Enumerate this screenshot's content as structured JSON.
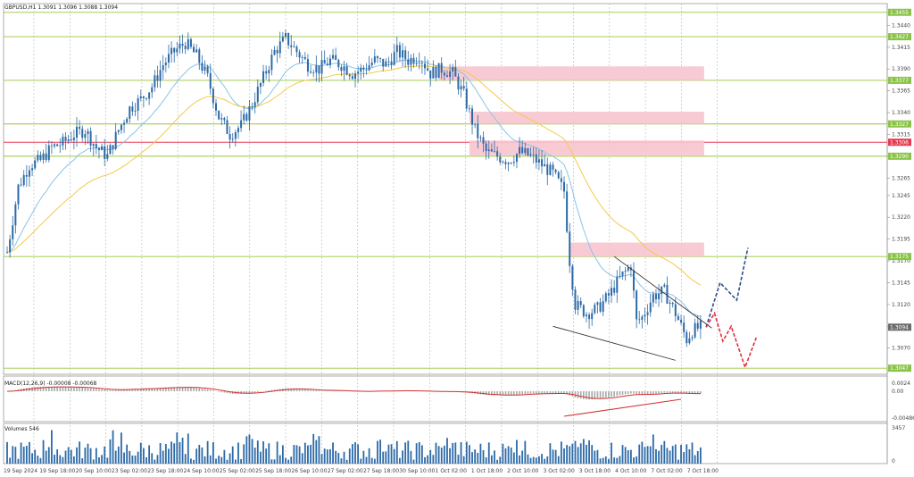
{
  "chart_data": {
    "type": "candlestick",
    "header": {
      "main": "GBPUSD,H1  1.3091 1.3096 1.3088 1.3094",
      "macd": "MACD(12,26,9) -0.00008 -0.00068",
      "volumes": "Volumes 546"
    },
    "price_axis": {
      "ticks": [
        "1.3440",
        "1.3415",
        "1.3390",
        "1.3365",
        "1.3340",
        "1.3315",
        "1.3290",
        "1.3265",
        "1.3245",
        "1.3220",
        "1.3195",
        "1.3170",
        "1.3145",
        "1.3120",
        "1.3095",
        "1.3070",
        "1.3045"
      ],
      "ylim": [
        1.304,
        1.3465
      ]
    },
    "price_labels": [
      {
        "text": "1.3455",
        "value": 1.3455,
        "color": "#8bc34a"
      },
      {
        "text": "1.3427",
        "value": 1.3427,
        "color": "#8bc34a"
      },
      {
        "text": "1.3377",
        "value": 1.3377,
        "color": "#8bc34a"
      },
      {
        "text": "1.3327",
        "value": 1.3327,
        "color": "#8bc34a"
      },
      {
        "text": "1.3306",
        "value": 1.3306,
        "color": "#e53950"
      },
      {
        "text": "1.3290",
        "value": 1.329,
        "color": "#8bc34a"
      },
      {
        "text": "1.3175",
        "value": 1.3175,
        "color": "#8bc34a"
      },
      {
        "text": "1.3094",
        "value": 1.3094,
        "color": "#6b6b6b"
      },
      {
        "text": "1.3047",
        "value": 1.3047,
        "color": "#8bc34a"
      }
    ],
    "horizontal_levels": [
      {
        "value": 1.3455,
        "color": "#9bc53d"
      },
      {
        "value": 1.3427,
        "color": "#9bc53d"
      },
      {
        "value": 1.3377,
        "color": "#9bc53d"
      },
      {
        "value": 1.3327,
        "color": "#9bc53d"
      },
      {
        "value": 1.3306,
        "color": "#e53950"
      },
      {
        "value": 1.329,
        "color": "#9bc53d"
      },
      {
        "value": 1.3175,
        "color": "#9bc53d"
      },
      {
        "value": 1.3047,
        "color": "#9bc53d"
      }
    ],
    "zones": [
      {
        "x_start": 155,
        "x_end": 249,
        "top": 1.3393,
        "bottom": 1.3377
      },
      {
        "x_start": 166,
        "x_end": 249,
        "top": 1.3341,
        "bottom": 1.3327
      },
      {
        "x_start": 166,
        "x_end": 249,
        "top": 1.3308,
        "bottom": 1.3291
      },
      {
        "x_start": 202,
        "x_end": 249,
        "top": 1.3191,
        "bottom": 1.3175
      }
    ],
    "time_axis": [
      "19 Sep 2024",
      "19 Sep 18:00",
      "20 Sep 10:00",
      "23 Sep 02:00",
      "23 Sep 18:00",
      "24 Sep 10:00",
      "25 Sep 02:00",
      "25 Sep 18:00",
      "26 Sep 10:00",
      "27 Sep 02:00",
      "27 Sep 18:00",
      "30 Sep 10:00",
      "1 Oct 02:00",
      "1 Oct 18:00",
      "2 Oct 10:00",
      "3 Oct 02:00",
      "3 Oct 18:00",
      "4 Oct 10:00",
      "7 Oct 02:00",
      "7 Oct 18:00"
    ],
    "close_path": [
      [
        0,
        1.318
      ],
      [
        4,
        1.3255
      ],
      [
        8,
        1.328
      ],
      [
        12,
        1.3285
      ],
      [
        16,
        1.33
      ],
      [
        20,
        1.3305
      ],
      [
        24,
        1.3315
      ],
      [
        28,
        1.332
      ],
      [
        32,
        1.33
      ],
      [
        36,
        1.329
      ],
      [
        40,
        1.332
      ],
      [
        44,
        1.3345
      ],
      [
        48,
        1.3355
      ],
      [
        52,
        1.337
      ],
      [
        56,
        1.3395
      ],
      [
        60,
        1.341
      ],
      [
        64,
        1.342
      ],
      [
        68,
        1.3405
      ],
      [
        72,
        1.338
      ],
      [
        76,
        1.3335
      ],
      [
        80,
        1.3315
      ],
      [
        84,
        1.3325
      ],
      [
        88,
        1.335
      ],
      [
        92,
        1.338
      ],
      [
        96,
        1.341
      ],
      [
        100,
        1.3425
      ],
      [
        104,
        1.341
      ],
      [
        108,
        1.3395
      ],
      [
        112,
        1.339
      ],
      [
        116,
        1.34
      ],
      [
        120,
        1.3395
      ],
      [
        124,
        1.3385
      ],
      [
        128,
        1.339
      ],
      [
        132,
        1.34
      ],
      [
        136,
        1.3395
      ],
      [
        140,
        1.341
      ],
      [
        144,
        1.34
      ],
      [
        148,
        1.3405
      ],
      [
        152,
        1.3385
      ],
      [
        156,
        1.339
      ],
      [
        160,
        1.3385
      ],
      [
        164,
        1.336
      ],
      [
        168,
        1.332
      ],
      [
        172,
        1.3295
      ],
      [
        176,
        1.329
      ],
      [
        180,
        1.3285
      ],
      [
        184,
        1.3295
      ],
      [
        188,
        1.329
      ],
      [
        192,
        1.328
      ],
      [
        196,
        1.327
      ],
      [
        200,
        1.325
      ],
      [
        202,
        1.317
      ],
      [
        204,
        1.312
      ],
      [
        208,
        1.311
      ],
      [
        212,
        1.3115
      ],
      [
        216,
        1.313
      ],
      [
        220,
        1.315
      ],
      [
        224,
        1.3165
      ],
      [
        226,
        1.31
      ],
      [
        228,
        1.3105
      ],
      [
        232,
        1.313
      ],
      [
        236,
        1.3135
      ],
      [
        240,
        1.311
      ],
      [
        244,
        1.308
      ],
      [
        246,
        1.309
      ],
      [
        249,
        1.3094
      ]
    ],
    "macd_axis": {
      "ticks": [
        "0.0024",
        "0.00",
        "-0.00486"
      ]
    },
    "volume_axis": {
      "ticks": [
        "3457",
        "0"
      ]
    }
  }
}
